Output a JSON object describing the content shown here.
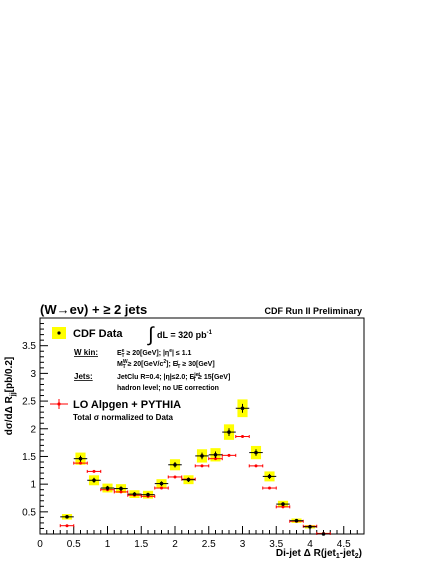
{
  "chart_data": {
    "type": "scatter",
    "title": "(W→eν) + ≥ 2 jets",
    "subtitle": "CDF Run II Preliminary",
    "xlabel": "Di-jet Δ R(jet1-jet2)",
    "ylabel": "dσ/dΔ Rjj[pb/0.2]",
    "xlim": [
      0,
      4.8
    ],
    "ylim": [
      0.1,
      4.0
    ],
    "x_ticks": [
      "0",
      "0.5",
      "1",
      "1.5",
      "2",
      "2.5",
      "3",
      "3.5",
      "4",
      "4.5"
    ],
    "y_ticks": [
      "0.5",
      "1",
      "1.5",
      "2",
      "2.5",
      "3",
      "3.5"
    ],
    "grid": false,
    "legend_position": "top-left",
    "series": [
      {
        "name": "CDF Data",
        "color": "#000000",
        "band_color": "#ffff00",
        "x": [
          0.4,
          0.6,
          0.8,
          1.0,
          1.2,
          1.4,
          1.6,
          1.8,
          2.0,
          2.2,
          2.4,
          2.6,
          2.8,
          3.0,
          3.2,
          3.4,
          3.6,
          3.8,
          4.0,
          4.2
        ],
        "y": [
          0.41,
          1.46,
          1.07,
          0.93,
          0.92,
          0.82,
          0.81,
          1.01,
          1.35,
          1.08,
          1.51,
          1.53,
          1.94,
          2.37,
          1.57,
          1.14,
          0.64,
          0.34,
          0.23,
          0.1
        ],
        "band_half_height": [
          0.05,
          0.11,
          0.09,
          0.08,
          0.08,
          0.07,
          0.07,
          0.08,
          0.1,
          0.08,
          0.12,
          0.12,
          0.14,
          0.16,
          0.12,
          0.09,
          0.06,
          0.04,
          0.03,
          0.02
        ]
      },
      {
        "name": "LO Alpgen + PYTHIA",
        "color": "#ff0000",
        "x": [
          0.4,
          0.6,
          0.8,
          1.0,
          1.2,
          1.4,
          1.6,
          1.8,
          2.0,
          2.2,
          2.4,
          2.6,
          2.8,
          3.0,
          3.2,
          3.4,
          3.6,
          3.8,
          4.0,
          4.2
        ],
        "y": [
          0.25,
          1.38,
          1.23,
          0.9,
          0.86,
          0.8,
          0.78,
          0.93,
          1.13,
          1.09,
          1.33,
          1.46,
          1.52,
          1.86,
          1.33,
          0.93,
          0.59,
          0.33,
          0.24,
          0.11
        ]
      }
    ],
    "legend_note": "Total σ normalized to Data",
    "annotations": {
      "lumi_label": "dL =  320 pb",
      "lumi_sup": "-1",
      "wkin_label": "W kin:",
      "wkin_line1": "E_T^e ≥ 20[GeV]; |η^e| ≤ 1.1",
      "wkin_line2": "M_T^W ≥ 20[GeV/c²]; E̸_T ≥ 30[GeV]",
      "jets_label": "Jets:",
      "jets_line1": "JetClu R=0.4; |η|≤2.0; E_T^jet ≥ 15[GeV]",
      "jets_line2": "hadron level; no UE correction"
    }
  }
}
